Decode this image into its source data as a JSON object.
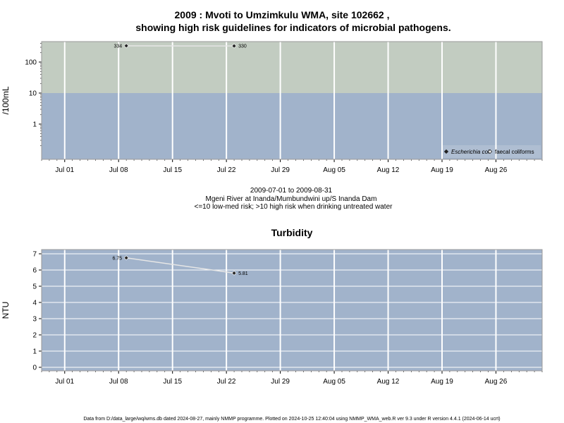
{
  "figure": {
    "title_line1": "2009 : Mvoti to Umzimkulu WMA, site 102662 ,",
    "title_line2": "showing high risk guidelines for indicators of microbial pathogens.",
    "subtitle_line1": "2009-07-01 to 2009-08-31",
    "subtitle_line2": "Mgeni River at Inanda/Mumbundwini up/S Inanda Dam",
    "subtitle_line3": "<=10 low-med risk; >10 high risk when drinking untreated water",
    "footer": "Data from D:/data_large/wq/wms.db dated 2024-08-27, mainly NMMP programme. Plotted on 2024-10-25 12:40:04 using NMMP_WMA_web.R ver 9.3 under R version 4.4.1 (2024-06-14 ucrt)"
  },
  "colors": {
    "panel_low": "#a1b3cb",
    "panel_high": "#c2ccc1",
    "grid": "#ffffff",
    "series_line": "#e6e6e6",
    "point": "#222222"
  },
  "chart_data": [
    {
      "type": "line",
      "title": "",
      "ylabel": "/100mL",
      "yscale": "log",
      "yticks": [
        "1",
        "10",
        "100"
      ],
      "x_range": [
        "2009-06-28",
        "2009-09-01"
      ],
      "x_ticks": [
        "Jul 01",
        "Jul 08",
        "Jul 15",
        "Jul 22",
        "Jul 29",
        "Aug 05",
        "Aug 12",
        "Aug 19",
        "Aug 26"
      ],
      "x_tick_dates": [
        "2009-07-01",
        "2009-07-08",
        "2009-07-15",
        "2009-07-22",
        "2009-07-29",
        "2009-08-05",
        "2009-08-12",
        "2009-08-19",
        "2009-08-26"
      ],
      "threshold": 10,
      "grid": true,
      "legend": "bottom-right",
      "series": [
        {
          "name": "Escherichia coli",
          "marker": "filled-diamond",
          "x": [
            "2009-07-09",
            "2009-07-23"
          ],
          "y": [
            334,
            330
          ],
          "labels": [
            "334",
            "330"
          ]
        },
        {
          "name": "faecal coliforms",
          "marker": "open-diamond",
          "x": [],
          "y": []
        }
      ]
    },
    {
      "type": "line",
      "title": "Turbidity",
      "ylabel": "NTU",
      "ylim": [
        0,
        7
      ],
      "yticks": [
        "0",
        "1",
        "2",
        "3",
        "4",
        "5",
        "6",
        "7"
      ],
      "x_range": [
        "2009-06-28",
        "2009-09-01"
      ],
      "x_ticks": [
        "Jul 01",
        "Jul 08",
        "Jul 15",
        "Jul 22",
        "Jul 29",
        "Aug 05",
        "Aug 12",
        "Aug 19",
        "Aug 26"
      ],
      "x_tick_dates": [
        "2009-07-01",
        "2009-07-08",
        "2009-07-15",
        "2009-07-22",
        "2009-07-29",
        "2009-08-05",
        "2009-08-12",
        "2009-08-19",
        "2009-08-26"
      ],
      "grid": true,
      "series": [
        {
          "marker": "filled-diamond",
          "x": [
            "2009-07-09",
            "2009-07-23"
          ],
          "y": [
            6.75,
            5.81
          ],
          "labels": [
            "6.75",
            "5.81"
          ]
        }
      ]
    }
  ]
}
